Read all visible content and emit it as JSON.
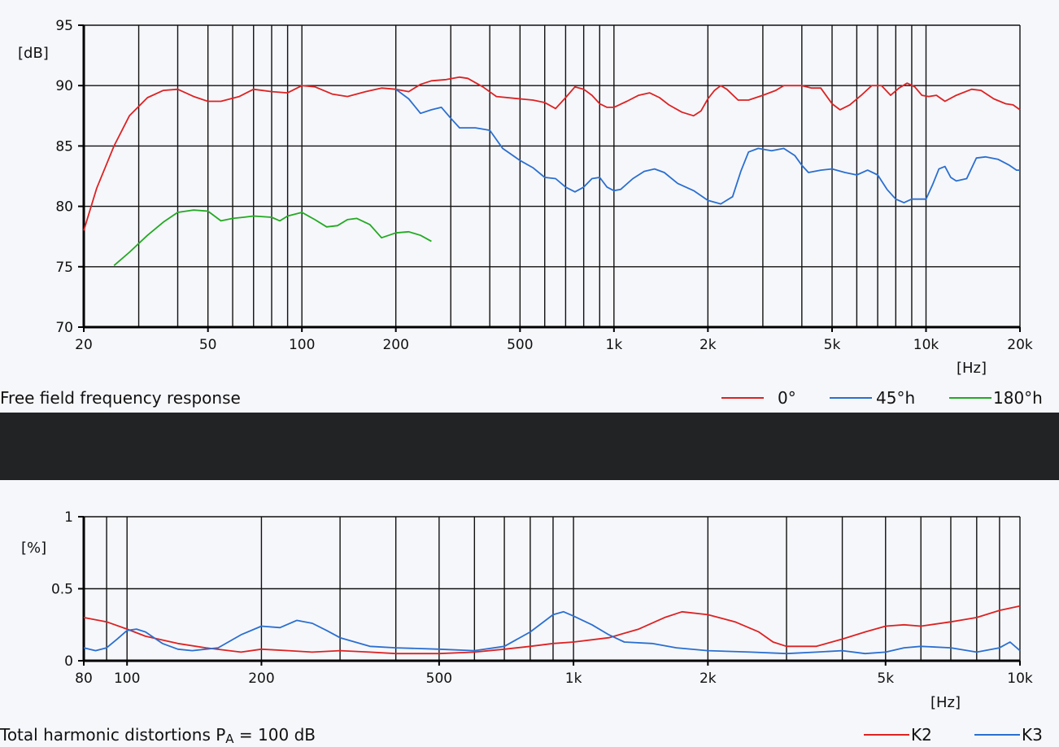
{
  "chart_data": [
    {
      "type": "line",
      "caption": "Free field frequency response",
      "ylabel": "[dB]",
      "xlabel": "[Hz]",
      "x_scale": "log",
      "xlim": [
        20,
        20000
      ],
      "ylim": [
        70,
        95
      ],
      "x_ticks": [
        20,
        50,
        100,
        200,
        500,
        1000,
        2000,
        5000,
        10000,
        20000
      ],
      "x_tick_labels": [
        "20",
        "50",
        "100",
        "200",
        "500",
        "1k",
        "2k",
        "5k",
        "10k",
        "20k"
      ],
      "y_ticks": [
        70,
        75,
        80,
        85,
        90,
        95
      ],
      "y_tick_labels": [
        "70",
        "75",
        "80",
        "85",
        "90",
        "95"
      ],
      "grid": true,
      "legend_position": "bottom-right",
      "series": [
        {
          "name": "0°",
          "color": "#dd2222",
          "points": [
            [
              20,
              78.0
            ],
            [
              22,
              81.5
            ],
            [
              25,
              85.0
            ],
            [
              28,
              87.5
            ],
            [
              32,
              89.0
            ],
            [
              36,
              89.6
            ],
            [
              40,
              89.7
            ],
            [
              45,
              89.1
            ],
            [
              50,
              88.7
            ],
            [
              55,
              88.7
            ],
            [
              63,
              89.1
            ],
            [
              70,
              89.7
            ],
            [
              80,
              89.5
            ],
            [
              90,
              89.4
            ],
            [
              100,
              90.0
            ],
            [
              110,
              89.9
            ],
            [
              125,
              89.3
            ],
            [
              140,
              89.1
            ],
            [
              160,
              89.5
            ],
            [
              180,
              89.8
            ],
            [
              200,
              89.7
            ],
            [
              220,
              89.5
            ],
            [
              240,
              90.1
            ],
            [
              260,
              90.4
            ],
            [
              290,
              90.5
            ],
            [
              320,
              90.7
            ],
            [
              340,
              90.6
            ],
            [
              380,
              89.9
            ],
            [
              420,
              89.1
            ],
            [
              500,
              88.9
            ],
            [
              550,
              88.8
            ],
            [
              600,
              88.6
            ],
            [
              650,
              88.1
            ],
            [
              700,
              89.0
            ],
            [
              750,
              89.9
            ],
            [
              800,
              89.7
            ],
            [
              850,
              89.2
            ],
            [
              900,
              88.5
            ],
            [
              950,
              88.2
            ],
            [
              1000,
              88.2
            ],
            [
              1100,
              88.7
            ],
            [
              1200,
              89.2
            ],
            [
              1300,
              89.4
            ],
            [
              1400,
              89.0
            ],
            [
              1500,
              88.4
            ],
            [
              1650,
              87.8
            ],
            [
              1800,
              87.5
            ],
            [
              1900,
              87.9
            ],
            [
              2000,
              88.9
            ],
            [
              2100,
              89.6
            ],
            [
              2200,
              90.0
            ],
            [
              2300,
              89.7
            ],
            [
              2500,
              88.8
            ],
            [
              2700,
              88.8
            ],
            [
              3000,
              89.2
            ],
            [
              3300,
              89.6
            ],
            [
              3500,
              90.0
            ],
            [
              4000,
              90.0
            ],
            [
              4300,
              89.8
            ],
            [
              4600,
              89.8
            ],
            [
              5000,
              88.5
            ],
            [
              5300,
              88.0
            ],
            [
              5700,
              88.4
            ],
            [
              6200,
              89.2
            ],
            [
              6700,
              90.0
            ],
            [
              7200,
              90.0
            ],
            [
              7700,
              89.2
            ],
            [
              8200,
              89.8
            ],
            [
              8700,
              90.2
            ],
            [
              9200,
              89.9
            ],
            [
              9700,
              89.2
            ],
            [
              10200,
              89.1
            ],
            [
              10800,
              89.2
            ],
            [
              11500,
              88.7
            ],
            [
              12500,
              89.2
            ],
            [
              14000,
              89.7
            ],
            [
              15000,
              89.6
            ],
            [
              16500,
              88.9
            ],
            [
              18000,
              88.5
            ],
            [
              19000,
              88.4
            ],
            [
              20000,
              88.0
            ]
          ]
        },
        {
          "name": "45°h",
          "color": "#2a6fd0",
          "points": [
            [
              200,
              89.7
            ],
            [
              220,
              88.9
            ],
            [
              240,
              87.7
            ],
            [
              260,
              88.0
            ],
            [
              280,
              88.2
            ],
            [
              300,
              87.3
            ],
            [
              320,
              86.5
            ],
            [
              360,
              86.5
            ],
            [
              400,
              86.3
            ],
            [
              440,
              84.8
            ],
            [
              500,
              83.8
            ],
            [
              550,
              83.2
            ],
            [
              600,
              82.4
            ],
            [
              650,
              82.3
            ],
            [
              700,
              81.6
            ],
            [
              750,
              81.2
            ],
            [
              800,
              81.6
            ],
            [
              850,
              82.3
            ],
            [
              900,
              82.4
            ],
            [
              950,
              81.6
            ],
            [
              1000,
              81.3
            ],
            [
              1050,
              81.4
            ],
            [
              1150,
              82.3
            ],
            [
              1250,
              82.9
            ],
            [
              1350,
              83.1
            ],
            [
              1450,
              82.8
            ],
            [
              1600,
              81.9
            ],
            [
              1800,
              81.3
            ],
            [
              2000,
              80.5
            ],
            [
              2200,
              80.2
            ],
            [
              2400,
              80.8
            ],
            [
              2550,
              82.9
            ],
            [
              2700,
              84.5
            ],
            [
              2900,
              84.8
            ],
            [
              3200,
              84.6
            ],
            [
              3500,
              84.8
            ],
            [
              3800,
              84.2
            ],
            [
              4000,
              83.4
            ],
            [
              4200,
              82.8
            ],
            [
              4600,
              83.0
            ],
            [
              5000,
              83.1
            ],
            [
              5500,
              82.8
            ],
            [
              6000,
              82.6
            ],
            [
              6500,
              83.0
            ],
            [
              7000,
              82.6
            ],
            [
              7500,
              81.4
            ],
            [
              8000,
              80.6
            ],
            [
              8500,
              80.3
            ],
            [
              9000,
              80.6
            ],
            [
              10000,
              80.6
            ],
            [
              10500,
              81.8
            ],
            [
              11000,
              83.1
            ],
            [
              11500,
              83.3
            ],
            [
              12000,
              82.4
            ],
            [
              12500,
              82.1
            ],
            [
              13500,
              82.3
            ],
            [
              14500,
              84.0
            ],
            [
              15500,
              84.1
            ],
            [
              17000,
              83.9
            ],
            [
              18500,
              83.4
            ],
            [
              19500,
              83.0
            ],
            [
              20000,
              83.0
            ]
          ]
        },
        {
          "name": "180°h",
          "color": "#22aa22",
          "points": [
            [
              25,
              75.1
            ],
            [
              28,
              76.2
            ],
            [
              32,
              77.6
            ],
            [
              36,
              78.7
            ],
            [
              40,
              79.5
            ],
            [
              45,
              79.7
            ],
            [
              50,
              79.6
            ],
            [
              55,
              78.8
            ],
            [
              60,
              79.0
            ],
            [
              65,
              79.1
            ],
            [
              70,
              79.2
            ],
            [
              80,
              79.1
            ],
            [
              85,
              78.8
            ],
            [
              90,
              79.2
            ],
            [
              100,
              79.5
            ],
            [
              110,
              78.9
            ],
            [
              120,
              78.3
            ],
            [
              130,
              78.4
            ],
            [
              140,
              78.9
            ],
            [
              150,
              79.0
            ],
            [
              165,
              78.5
            ],
            [
              180,
              77.4
            ],
            [
              200,
              77.8
            ],
            [
              220,
              77.9
            ],
            [
              240,
              77.6
            ],
            [
              260,
              77.1
            ]
          ]
        }
      ]
    },
    {
      "type": "line",
      "caption_prefix": "Total harmonic distortions P",
      "caption_subscript": "A",
      "caption_suffix": " = 100 dB",
      "ylabel": "[%]",
      "xlabel": "[Hz]",
      "x_scale": "log",
      "xlim": [
        80,
        10000
      ],
      "ylim": [
        0,
        1
      ],
      "x_ticks": [
        80,
        100,
        200,
        500,
        1000,
        2000,
        5000,
        10000
      ],
      "x_tick_labels": [
        "80",
        "100",
        "200",
        "500",
        "1k",
        "2k",
        "5k",
        "10k"
      ],
      "y_ticks": [
        0,
        0.5,
        1
      ],
      "y_tick_labels": [
        "0",
        "0.5",
        "1"
      ],
      "grid": true,
      "legend_position": "bottom-right",
      "series": [
        {
          "name": "K2",
          "color": "#dd2222",
          "points": [
            [
              80,
              0.3
            ],
            [
              90,
              0.27
            ],
            [
              100,
              0.22
            ],
            [
              110,
              0.17
            ],
            [
              130,
              0.12
            ],
            [
              150,
              0.09
            ],
            [
              180,
              0.06
            ],
            [
              200,
              0.08
            ],
            [
              230,
              0.07
            ],
            [
              260,
              0.06
            ],
            [
              300,
              0.07
            ],
            [
              350,
              0.06
            ],
            [
              400,
              0.05
            ],
            [
              500,
              0.05
            ],
            [
              600,
              0.06
            ],
            [
              700,
              0.08
            ],
            [
              800,
              0.1
            ],
            [
              900,
              0.12
            ],
            [
              1000,
              0.13
            ],
            [
              1200,
              0.16
            ],
            [
              1400,
              0.22
            ],
            [
              1600,
              0.3
            ],
            [
              1750,
              0.34
            ],
            [
              2000,
              0.32
            ],
            [
              2300,
              0.27
            ],
            [
              2600,
              0.2
            ],
            [
              2800,
              0.13
            ],
            [
              3000,
              0.1
            ],
            [
              3500,
              0.1
            ],
            [
              4000,
              0.15
            ],
            [
              4500,
              0.2
            ],
            [
              5000,
              0.24
            ],
            [
              5500,
              0.25
            ],
            [
              6000,
              0.24
            ],
            [
              7000,
              0.27
            ],
            [
              8000,
              0.3
            ],
            [
              9000,
              0.35
            ],
            [
              10000,
              0.38
            ]
          ]
        },
        {
          "name": "K3",
          "color": "#2a6fd0",
          "points": [
            [
              80,
              0.09
            ],
            [
              85,
              0.07
            ],
            [
              90,
              0.09
            ],
            [
              95,
              0.15
            ],
            [
              100,
              0.21
            ],
            [
              105,
              0.22
            ],
            [
              110,
              0.2
            ],
            [
              120,
              0.12
            ],
            [
              130,
              0.08
            ],
            [
              140,
              0.07
            ],
            [
              160,
              0.09
            ],
            [
              180,
              0.18
            ],
            [
              200,
              0.24
            ],
            [
              220,
              0.23
            ],
            [
              240,
              0.28
            ],
            [
              260,
              0.26
            ],
            [
              280,
              0.21
            ],
            [
              300,
              0.16
            ],
            [
              350,
              0.1
            ],
            [
              400,
              0.09
            ],
            [
              500,
              0.08
            ],
            [
              600,
              0.07
            ],
            [
              700,
              0.1
            ],
            [
              800,
              0.2
            ],
            [
              900,
              0.32
            ],
            [
              950,
              0.34
            ],
            [
              1000,
              0.31
            ],
            [
              1100,
              0.25
            ],
            [
              1200,
              0.18
            ],
            [
              1300,
              0.13
            ],
            [
              1500,
              0.12
            ],
            [
              1700,
              0.09
            ],
            [
              2000,
              0.07
            ],
            [
              2500,
              0.06
            ],
            [
              3000,
              0.05
            ],
            [
              3500,
              0.06
            ],
            [
              4000,
              0.07
            ],
            [
              4500,
              0.05
            ],
            [
              5000,
              0.06
            ],
            [
              5500,
              0.09
            ],
            [
              6000,
              0.1
            ],
            [
              7000,
              0.09
            ],
            [
              8000,
              0.06
            ],
            [
              9000,
              0.09
            ],
            [
              9500,
              0.13
            ],
            [
              10000,
              0.07
            ]
          ]
        }
      ]
    }
  ]
}
